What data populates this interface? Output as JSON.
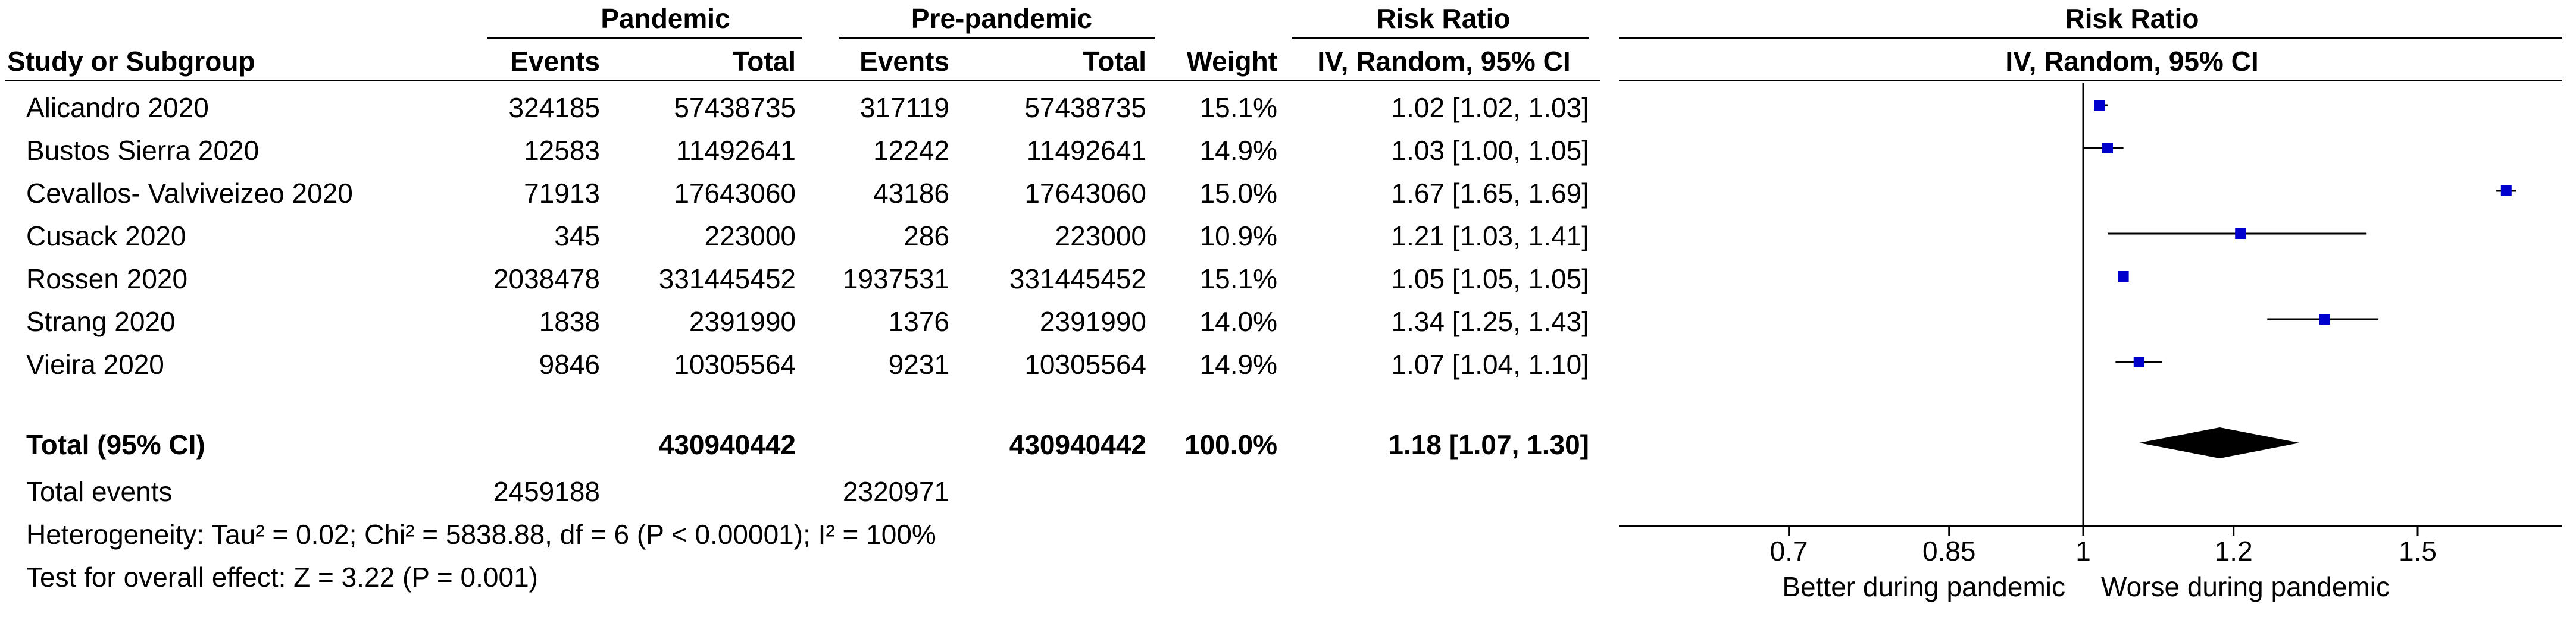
{
  "header": {
    "pandemic": "Pandemic",
    "prepandemic": "Pre-pandemic",
    "rr": "Risk Ratio",
    "study": "Study or Subgroup",
    "events": "Events",
    "total": "Total",
    "weight": "Weight",
    "method": "IV, Random, 95% CI",
    "plot_title": "Risk Ratio",
    "plot_method": "IV, Random, 95% CI"
  },
  "rows": [
    {
      "study": "Alicandro 2020",
      "ev1": "324185",
      "tot1": "57438735",
      "ev2": "317119",
      "tot2": "57438735",
      "weight": "15.1%",
      "ci": "1.02 [1.02, 1.03]"
    },
    {
      "study": "Bustos Sierra 2020",
      "ev1": "12583",
      "tot1": "11492641",
      "ev2": "12242",
      "tot2": "11492641",
      "weight": "14.9%",
      "ci": "1.03 [1.00, 1.05]"
    },
    {
      "study": "Cevallos- Valviveizeo 2020",
      "ev1": "71913",
      "tot1": "17643060",
      "ev2": "43186",
      "tot2": "17643060",
      "weight": "15.0%",
      "ci": "1.67 [1.65, 1.69]"
    },
    {
      "study": "Cusack 2020",
      "ev1": "345",
      "tot1": "223000",
      "ev2": "286",
      "tot2": "223000",
      "weight": "10.9%",
      "ci": "1.21 [1.03, 1.41]"
    },
    {
      "study": "Rossen 2020",
      "ev1": "2038478",
      "tot1": "331445452",
      "ev2": "1937531",
      "tot2": "331445452",
      "weight": "15.1%",
      "ci": "1.05 [1.05, 1.05]"
    },
    {
      "study": "Strang 2020",
      "ev1": "1838",
      "tot1": "2391990",
      "ev2": "1376",
      "tot2": "2391990",
      "weight": "14.0%",
      "ci": "1.34 [1.25, 1.43]"
    },
    {
      "study": "Vieira 2020",
      "ev1": "9846",
      "tot1": "10305564",
      "ev2": "9231",
      "tot2": "10305564",
      "weight": "14.9%",
      "ci": "1.07 [1.04, 1.10]"
    }
  ],
  "total": {
    "study": "Total (95% CI)",
    "tot1": "430940442",
    "tot2": "430940442",
    "weight": "100.0%",
    "ci": "1.18 [1.07, 1.30]"
  },
  "events_row": {
    "label": "Total events",
    "ev1": "2459188",
    "ev2": "2320971"
  },
  "heterogeneity": "Heterogeneity: Tau² = 0.02; Chi² = 5838.88, df = 6 (P < 0.00001); I² = 100%",
  "overall": "Test for overall effect: Z = 3.22 (P = 0.001)",
  "chart_data": {
    "type": "forest",
    "title": "Risk Ratio",
    "subtitle": "IV, Random, 95% CI",
    "xscale": "log",
    "xticks": [
      0.7,
      0.85,
      1,
      1.2,
      1.5
    ],
    "xtick_labels": [
      "0.7",
      "0.85",
      "1",
      "1.2",
      "1.5"
    ],
    "null_value": 1,
    "left_label": "Better during pandemic",
    "right_label": "Worse during pandemic",
    "studies": [
      {
        "name": "Alicandro 2020",
        "rr": 1.02,
        "lower": 1.02,
        "upper": 1.03,
        "weight": 15.1
      },
      {
        "name": "Bustos Sierra 2020",
        "rr": 1.03,
        "lower": 1.0,
        "upper": 1.05,
        "weight": 14.9
      },
      {
        "name": "Cevallos- Valviveizeo 2020",
        "rr": 1.67,
        "lower": 1.65,
        "upper": 1.69,
        "weight": 15.0
      },
      {
        "name": "Cusack 2020",
        "rr": 1.21,
        "lower": 1.03,
        "upper": 1.41,
        "weight": 10.9
      },
      {
        "name": "Rossen 2020",
        "rr": 1.05,
        "lower": 1.05,
        "upper": 1.05,
        "weight": 15.1
      },
      {
        "name": "Strang 2020",
        "rr": 1.34,
        "lower": 1.25,
        "upper": 1.43,
        "weight": 14.0
      },
      {
        "name": "Vieira 2020",
        "rr": 1.07,
        "lower": 1.04,
        "upper": 1.1,
        "weight": 14.9
      }
    ],
    "pooled": {
      "rr": 1.18,
      "lower": 1.07,
      "upper": 1.3
    },
    "colors": {
      "marker": "#0000cc",
      "line": "#000000"
    }
  }
}
